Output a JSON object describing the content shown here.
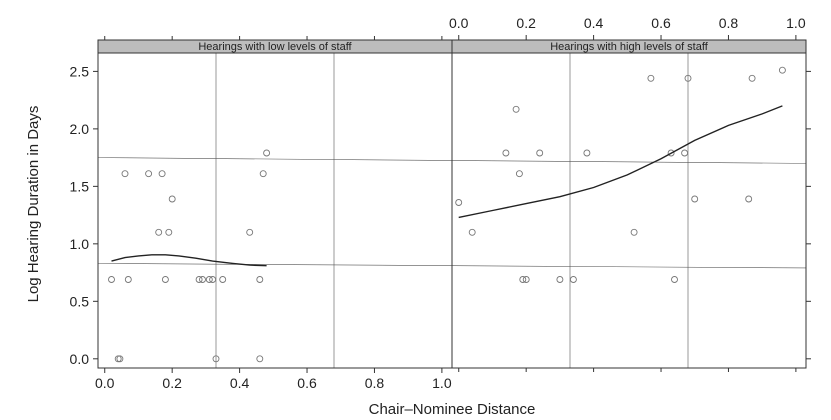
{
  "chart_data": {
    "type": "scatter",
    "xlabel": "Chair–Nominee Distance",
    "ylabel": "Log Hearing Duration in Days",
    "xlim": [
      -0.02,
      1.03
    ],
    "ylim": [
      -0.08,
      2.66
    ],
    "xticks": [
      "0.0",
      "0.2",
      "0.4",
      "0.6",
      "0.8",
      "1.0"
    ],
    "yticks": [
      "0.0",
      "0.5",
      "1.0",
      "1.5",
      "2.0",
      "2.5"
    ],
    "panels": [
      {
        "name": "Hearings with low levels of staff",
        "points": [
          [
            0.02,
            0.69
          ],
          [
            0.04,
            0.0
          ],
          [
            0.045,
            0.0
          ],
          [
            0.06,
            1.61
          ],
          [
            0.07,
            0.69
          ],
          [
            0.13,
            1.61
          ],
          [
            0.17,
            1.61
          ],
          [
            0.16,
            1.1
          ],
          [
            0.19,
            1.1
          ],
          [
            0.18,
            0.69
          ],
          [
            0.2,
            1.39
          ],
          [
            0.28,
            0.69
          ],
          [
            0.29,
            0.69
          ],
          [
            0.31,
            0.69
          ],
          [
            0.32,
            0.69
          ],
          [
            0.33,
            0.0
          ],
          [
            0.35,
            0.69
          ],
          [
            0.43,
            1.1
          ],
          [
            0.46,
            0.69
          ],
          [
            0.46,
            0.0
          ],
          [
            0.47,
            1.61
          ],
          [
            0.48,
            1.79
          ]
        ],
        "smooth": [
          [
            0.02,
            0.85
          ],
          [
            0.06,
            0.88
          ],
          [
            0.1,
            0.895
          ],
          [
            0.14,
            0.905
          ],
          [
            0.18,
            0.905
          ],
          [
            0.22,
            0.895
          ],
          [
            0.27,
            0.875
          ],
          [
            0.32,
            0.85
          ],
          [
            0.38,
            0.83
          ],
          [
            0.43,
            0.815
          ],
          [
            0.48,
            0.81
          ]
        ]
      },
      {
        "name": "Hearings with high levels of staff",
        "points": [
          [
            0.0,
            1.36
          ],
          [
            0.04,
            1.1
          ],
          [
            0.14,
            1.79
          ],
          [
            0.17,
            2.17
          ],
          [
            0.18,
            1.61
          ],
          [
            0.19,
            0.69
          ],
          [
            0.2,
            0.69
          ],
          [
            0.24,
            1.79
          ],
          [
            0.3,
            0.69
          ],
          [
            0.34,
            0.69
          ],
          [
            0.38,
            1.79
          ],
          [
            0.52,
            1.1
          ],
          [
            0.57,
            2.44
          ],
          [
            0.63,
            1.79
          ],
          [
            0.64,
            0.69
          ],
          [
            0.67,
            1.79
          ],
          [
            0.68,
            2.44
          ],
          [
            0.7,
            1.39
          ],
          [
            0.86,
            1.39
          ],
          [
            0.87,
            2.44
          ],
          [
            0.96,
            2.51
          ]
        ],
        "smooth": [
          [
            0.0,
            1.23
          ],
          [
            0.1,
            1.29
          ],
          [
            0.2,
            1.35
          ],
          [
            0.3,
            1.41
          ],
          [
            0.4,
            1.49
          ],
          [
            0.5,
            1.6
          ],
          [
            0.6,
            1.74
          ],
          [
            0.7,
            1.9
          ],
          [
            0.8,
            2.03
          ],
          [
            0.9,
            2.13
          ],
          [
            0.96,
            2.2
          ]
        ]
      }
    ]
  }
}
